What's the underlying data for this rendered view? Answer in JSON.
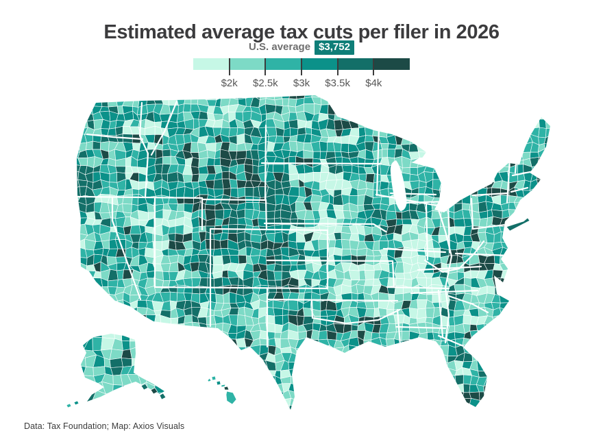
{
  "title": "Estimated average tax cuts per filer in 2026",
  "legend": {
    "average_label": "U.S. average",
    "average_value": "$3,752",
    "badge_color": "#0f7e78",
    "tick_labels": [
      "$2k",
      "$2.5k",
      "$3k",
      "$3.5k",
      "$4k"
    ],
    "scale_colors": [
      "#c6f7e6",
      "#7ddac6",
      "#2fb3a6",
      "#0b9189",
      "#136f68",
      "#1c4a46"
    ]
  },
  "chart_data": {
    "type": "choropleth",
    "title": "Estimated average tax cuts per filer in 2026",
    "unit": "USD per tax filer",
    "geography_level": "county",
    "regions_shown": [
      "Contiguous United States",
      "Alaska",
      "Hawaii"
    ],
    "us_average_usd": 3752,
    "scale": {
      "bucket_bounds_usd": [
        2000,
        2500,
        3000,
        3500,
        4000
      ],
      "bucket_colors": [
        "#c6f7e6",
        "#7ddac6",
        "#2fb3a6",
        "#0b9189",
        "#136f68",
        "#1c4a46"
      ],
      "legend_position": "top-center"
    },
    "state_border_color": "#ffffff",
    "county_border_color": "#ffffff"
  },
  "footer": "Data: Tax Foundation; Map: Axios Visuals"
}
